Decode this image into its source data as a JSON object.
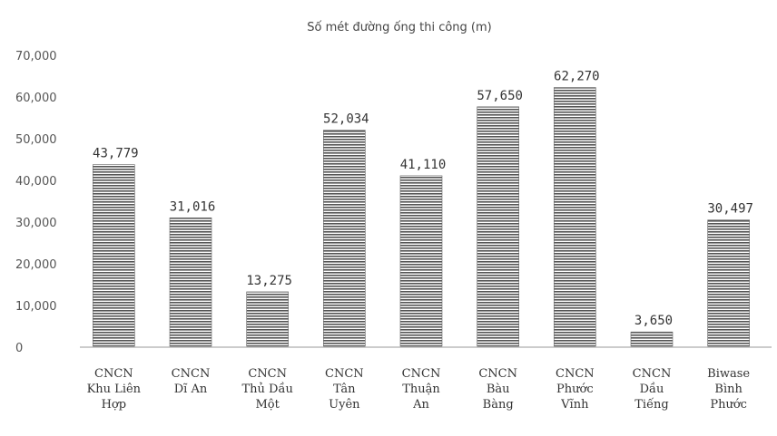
{
  "chart_data": {
    "type": "bar",
    "title": "Số mét đường ống thi công (m)",
    "xlabel": "",
    "ylabel": "",
    "ylim": [
      0,
      70000
    ],
    "yticks": [
      0,
      10000,
      20000,
      30000,
      40000,
      50000,
      60000,
      70000
    ],
    "ytick_labels": [
      "0",
      "10,000",
      "20,000",
      "30,000",
      "40,000",
      "50,000",
      "60,000",
      "70,000"
    ],
    "grid": false,
    "legend": "none",
    "bar_color": "#555555",
    "bar_pattern": "horizontal-lines",
    "categories": [
      [
        "CNCN",
        "Khu Liên",
        "Hợp"
      ],
      [
        "CNCN",
        "Dĩ An"
      ],
      [
        "CNCN",
        "Thủ Dầu",
        "Một"
      ],
      [
        "CNCN",
        "Tân",
        "Uyên"
      ],
      [
        "CNCN",
        "Thuận",
        "An"
      ],
      [
        "CNCN",
        "Bàu",
        "Bàng"
      ],
      [
        "CNCN",
        "Phước",
        "Vĩnh"
      ],
      [
        "CNCN",
        "Dầu",
        "Tiếng"
      ],
      [
        "Biwase",
        "Bình",
        "Phước"
      ]
    ],
    "values": [
      43779,
      31016,
      13275,
      52034,
      41110,
      57650,
      62270,
      3650,
      30497
    ],
    "value_labels": [
      "43,779",
      "31,016",
      "13,275",
      "52,034",
      "41,110",
      "57,650",
      "62,270",
      "3,650",
      "30,497"
    ]
  }
}
